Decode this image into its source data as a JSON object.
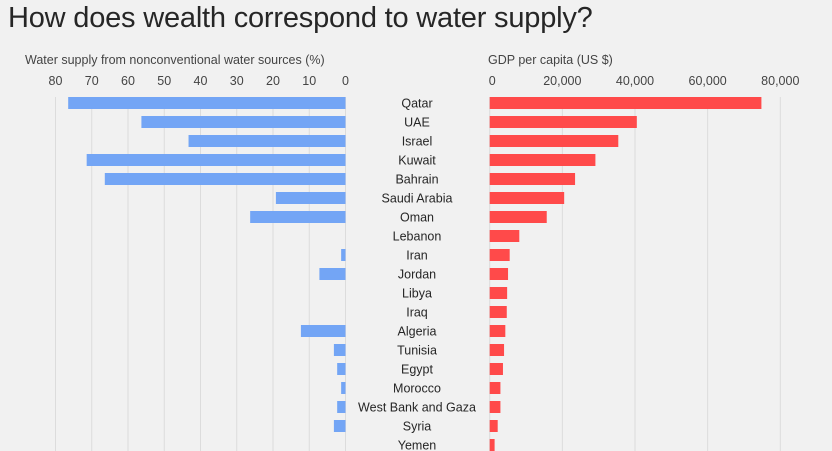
{
  "title": "How does wealth correspond to water supply?",
  "colors": {
    "left_bars": "#73a5f5",
    "right_bars": "#ff4a4a",
    "grid": "#dcdcdc",
    "background": "#f1f1f1"
  },
  "chart_data": [
    {
      "type": "bar",
      "orientation": "horizontal",
      "direction": "right-to-left",
      "xlabel": "Water supply from nonconventional water sources (%)",
      "xlim": [
        0,
        80
      ],
      "ticks": [
        80,
        70,
        60,
        50,
        40,
        30,
        20,
        10,
        0
      ],
      "grid": true,
      "categories": [
        "Qatar",
        "UAE",
        "Israel",
        "Kuwait",
        "Bahrain",
        "Saudi Arabia",
        "Oman",
        "Lebanon",
        "Iran",
        "Jordan",
        "Libya",
        "Iraq",
        "Algeria",
        "Tunisia",
        "Egypt",
        "Morocco",
        "West Bank and Gaza",
        "Syria",
        "Yemen"
      ],
      "values": [
        76.5,
        56.3,
        43.3,
        71.4,
        66.4,
        19.2,
        26.3,
        0,
        1.2,
        7.2,
        0,
        0,
        12.3,
        3.2,
        2.3,
        1.2,
        2.3,
        3.2,
        0
      ]
    },
    {
      "type": "bar",
      "orientation": "horizontal",
      "xlabel": "GDP per capita (US $)",
      "xlim": [
        0,
        80000
      ],
      "ticks": [
        "0",
        "20,000",
        "40,000",
        "60,000",
        "80,000"
      ],
      "tick_values": [
        0,
        20000,
        40000,
        60000,
        80000
      ],
      "grid": true,
      "categories": [
        "Qatar",
        "UAE",
        "Israel",
        "Kuwait",
        "Bahrain",
        "Saudi Arabia",
        "Oman",
        "Lebanon",
        "Iran",
        "Jordan",
        "Libya",
        "Iraq",
        "Algeria",
        "Tunisia",
        "Egypt",
        "Morocco",
        "West Bank and Gaza",
        "Syria",
        "Yemen"
      ],
      "values": [
        74800,
        40500,
        35400,
        29100,
        23500,
        20500,
        15700,
        8150,
        5500,
        5050,
        4800,
        4700,
        4300,
        3950,
        3650,
        2950,
        2950,
        2200,
        1350
      ]
    }
  ]
}
